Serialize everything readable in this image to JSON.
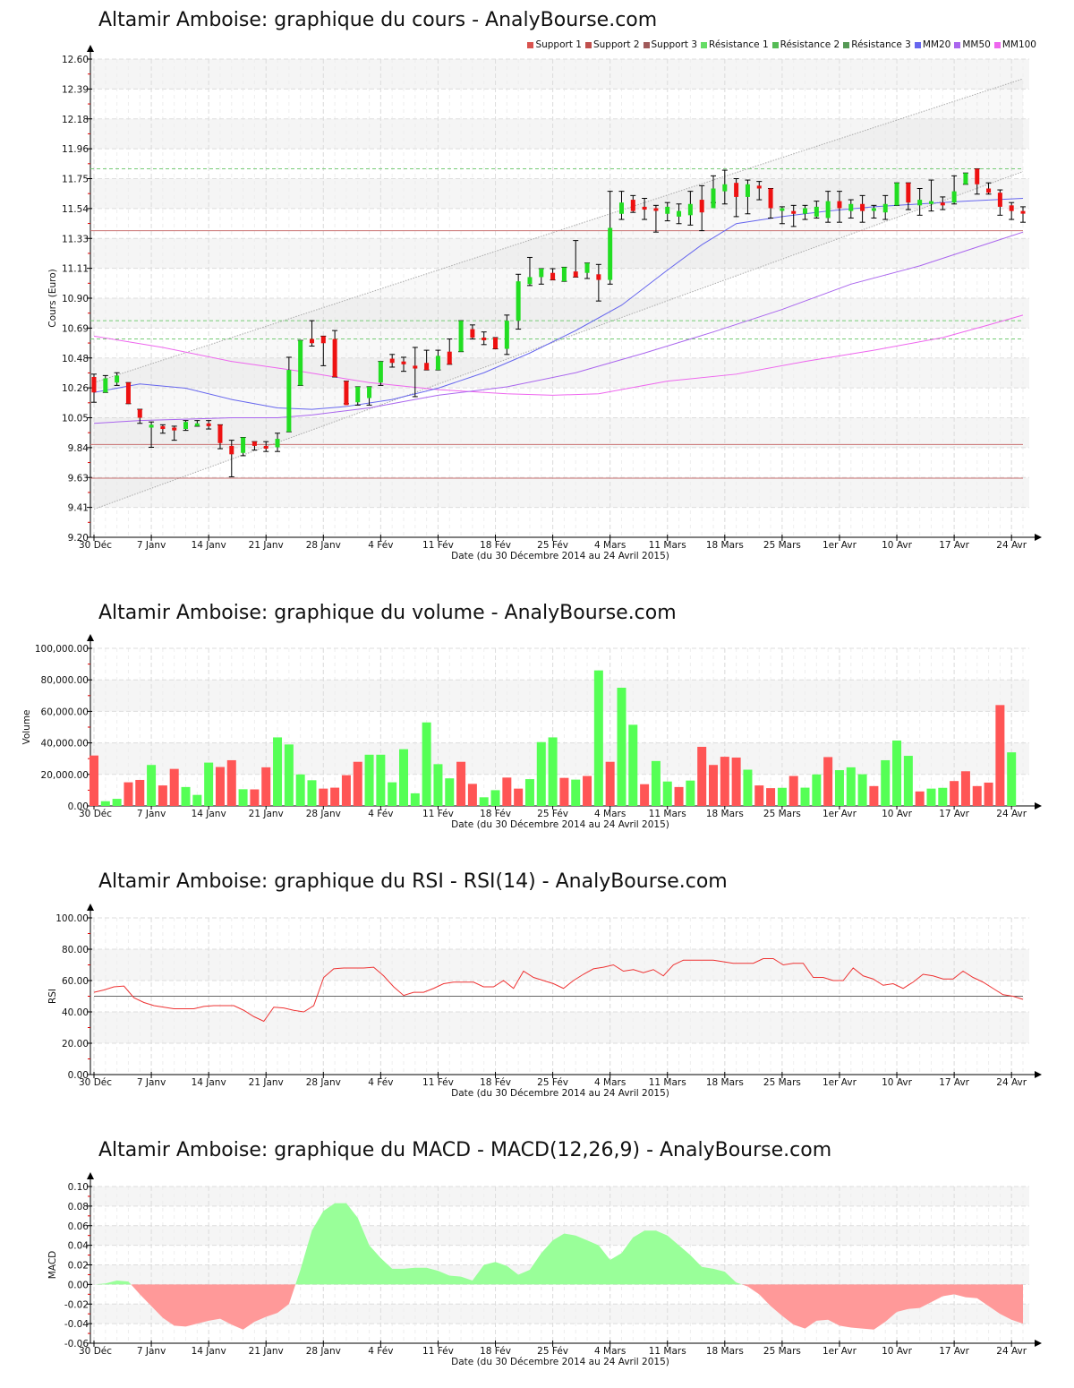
{
  "page": {
    "site": "AnalyBourse.com"
  },
  "chart_data": [
    {
      "id": "price",
      "type": "candlestick",
      "title": "Altamir Amboise: graphique du cours - AnalyBourse.com",
      "xlabel": "Date (du 30 Décembre 2014 au 24 Avril 2015)",
      "ylabel": "Cours (Euro)",
      "ylim": [
        9.2,
        12.6
      ],
      "yticks": [
        "9.20",
        "9.41",
        "9.63",
        "9.84",
        "10.05",
        "10.26",
        "10.48",
        "10.69",
        "10.90",
        "11.11",
        "11.33",
        "11.54",
        "11.75",
        "11.96",
        "12.18",
        "12.39",
        "12.60"
      ],
      "xticks": [
        "30 Déc",
        "7 Janv",
        "14 Janv",
        "21 Janv",
        "28 Janv",
        "4 Fév",
        "11 Fév",
        "18 Fév",
        "25 Fév",
        "4 Mars",
        "11 Mars",
        "18 Mars",
        "25 Mars",
        "1er Avr",
        "10 Avr",
        "17 Avr",
        "24 Avr"
      ],
      "grid": true,
      "legend_position": "top-right",
      "legend": [
        {
          "label": "Support 1",
          "color": "#d9534f"
        },
        {
          "label": "Support 2",
          "color": "#c0504d"
        },
        {
          "label": "Support 3",
          "color": "#a05a5a"
        },
        {
          "label": "Résistance 1",
          "color": "#66dd66"
        },
        {
          "label": "Résistance 2",
          "color": "#55bb55"
        },
        {
          "label": "Résistance 3",
          "color": "#559955"
        },
        {
          "label": "MM20",
          "color": "#6666ee"
        },
        {
          "label": "MM50",
          "color": "#aa66ee"
        },
        {
          "label": "MM100",
          "color": "#ee66ee"
        }
      ],
      "supports": [
        11.38,
        9.86,
        9.62
      ],
      "resistances": [
        11.82,
        10.74,
        10.61
      ],
      "candles": [
        [
          10.34,
          10.23,
          10.36,
          10.16
        ],
        [
          10.23,
          10.33,
          10.35,
          10.23
        ],
        [
          10.3,
          10.35,
          10.37,
          10.28
        ],
        [
          10.3,
          10.15,
          10.3,
          10.15
        ],
        [
          10.11,
          10.05,
          10.11,
          10.01
        ],
        [
          9.98,
          10.0,
          10.02,
          9.84
        ],
        [
          9.99,
          9.97,
          10.0,
          9.94
        ],
        [
          9.98,
          9.96,
          9.99,
          9.89
        ],
        [
          9.97,
          10.02,
          10.03,
          9.96
        ],
        [
          10.0,
          10.01,
          10.03,
          9.99
        ],
        [
          10.01,
          9.99,
          10.03,
          9.97
        ],
        [
          10.0,
          9.87,
          10.0,
          9.83
        ],
        [
          9.85,
          9.79,
          9.89,
          9.63
        ],
        [
          9.8,
          9.91,
          9.91,
          9.78
        ],
        [
          9.88,
          9.85,
          9.88,
          9.82
        ],
        [
          9.85,
          9.83,
          9.88,
          9.81
        ],
        [
          9.84,
          9.9,
          9.94,
          9.81
        ],
        [
          9.95,
          10.39,
          10.48,
          9.95
        ],
        [
          10.28,
          10.6,
          10.6,
          10.28
        ],
        [
          10.61,
          10.58,
          10.74,
          10.56
        ],
        [
          10.63,
          10.58,
          10.63,
          10.42
        ],
        [
          10.61,
          10.34,
          10.67,
          10.34
        ],
        [
          10.31,
          10.14,
          10.31,
          10.15
        ],
        [
          10.16,
          10.27,
          10.27,
          10.14
        ],
        [
          10.19,
          10.27,
          10.27,
          10.14
        ],
        [
          10.3,
          10.45,
          10.45,
          10.28
        ],
        [
          10.47,
          10.44,
          10.5,
          10.41
        ],
        [
          10.45,
          10.43,
          10.48,
          10.38
        ],
        [
          10.42,
          10.4,
          10.55,
          10.2
        ],
        [
          10.44,
          10.39,
          10.53,
          10.39
        ],
        [
          10.39,
          10.49,
          10.53,
          10.39
        ],
        [
          10.52,
          10.43,
          10.61,
          10.43
        ],
        [
          10.52,
          10.74,
          10.74,
          10.52
        ],
        [
          10.68,
          10.62,
          10.71,
          10.61
        ],
        [
          10.62,
          10.61,
          10.66,
          10.57
        ],
        [
          10.62,
          10.54,
          10.62,
          10.54
        ],
        [
          10.54,
          10.74,
          10.78,
          10.5
        ],
        [
          10.74,
          11.02,
          11.07,
          10.68
        ],
        [
          11.0,
          11.05,
          11.19,
          10.99
        ],
        [
          11.05,
          11.11,
          11.11,
          11.0
        ],
        [
          11.08,
          11.03,
          11.11,
          11.03
        ],
        [
          11.02,
          11.12,
          11.12,
          11.02
        ],
        [
          11.09,
          11.05,
          11.31,
          11.05
        ],
        [
          11.08,
          11.15,
          11.15,
          11.04
        ],
        [
          11.07,
          11.03,
          11.14,
          10.88
        ],
        [
          11.03,
          11.4,
          11.66,
          11.0
        ],
        [
          11.5,
          11.58,
          11.66,
          11.46
        ],
        [
          11.6,
          11.52,
          11.63,
          11.51
        ],
        [
          11.55,
          11.53,
          11.61,
          11.46
        ],
        [
          11.54,
          11.53,
          11.56,
          11.37
        ],
        [
          11.5,
          11.55,
          11.58,
          11.45
        ],
        [
          11.48,
          11.52,
          11.57,
          11.43
        ],
        [
          11.49,
          11.57,
          11.66,
          11.42
        ],
        [
          11.6,
          11.51,
          11.7,
          11.38
        ],
        [
          11.54,
          11.68,
          11.77,
          11.58
        ],
        [
          11.66,
          11.71,
          11.81,
          11.57
        ],
        [
          11.72,
          11.62,
          11.75,
          11.48
        ],
        [
          11.62,
          11.71,
          11.74,
          11.5
        ],
        [
          11.7,
          11.68,
          11.73,
          11.6
        ],
        [
          11.68,
          11.54,
          11.68,
          11.47
        ],
        [
          11.54,
          11.54,
          11.55,
          11.43
        ],
        [
          11.52,
          11.5,
          11.56,
          11.41
        ],
        [
          11.5,
          11.54,
          11.56,
          11.46
        ],
        [
          11.48,
          11.55,
          11.59,
          11.47
        ],
        [
          11.47,
          11.59,
          11.66,
          11.44
        ],
        [
          11.59,
          11.54,
          11.66,
          11.44
        ],
        [
          11.52,
          11.57,
          11.6,
          11.47
        ],
        [
          11.57,
          11.52,
          11.63,
          11.44
        ],
        [
          11.54,
          11.54,
          11.56,
          11.47
        ],
        [
          11.51,
          11.57,
          11.63,
          11.46
        ],
        [
          11.56,
          11.72,
          11.72,
          11.56
        ],
        [
          11.72,
          11.58,
          11.72,
          11.53
        ],
        [
          11.56,
          11.6,
          11.68,
          11.49
        ],
        [
          11.57,
          11.59,
          11.74,
          11.52
        ],
        [
          11.58,
          11.56,
          11.62,
          11.53
        ],
        [
          11.58,
          11.66,
          11.77,
          11.57
        ],
        [
          11.71,
          11.79,
          11.79,
          11.71
        ],
        [
          11.82,
          11.71,
          11.82,
          11.64
        ],
        [
          11.68,
          11.65,
          11.72,
          11.64
        ],
        [
          11.65,
          11.55,
          11.67,
          11.49
        ],
        [
          11.56,
          11.52,
          11.58,
          11.46
        ],
        [
          11.52,
          11.51,
          11.55,
          11.44
        ]
      ],
      "mm20": [
        [
          0,
          10.23
        ],
        [
          4,
          10.29
        ],
        [
          8,
          10.26
        ],
        [
          12,
          10.18
        ],
        [
          16,
          10.12
        ],
        [
          19,
          10.11
        ],
        [
          22,
          10.13
        ],
        [
          26,
          10.18
        ],
        [
          30,
          10.26
        ],
        [
          34,
          10.37
        ],
        [
          38,
          10.51
        ],
        [
          42,
          10.67
        ],
        [
          46,
          10.85
        ],
        [
          50,
          11.1
        ],
        [
          53,
          11.28
        ],
        [
          56,
          11.43
        ],
        [
          60,
          11.48
        ],
        [
          64,
          11.52
        ],
        [
          68,
          11.55
        ],
        [
          72,
          11.57
        ],
        [
          76,
          11.59
        ],
        [
          81,
          11.61
        ]
      ],
      "mm50": [
        [
          0,
          10.01
        ],
        [
          4,
          10.03
        ],
        [
          8,
          10.04
        ],
        [
          12,
          10.05
        ],
        [
          16,
          10.05
        ],
        [
          19,
          10.07
        ],
        [
          24,
          10.12
        ],
        [
          30,
          10.21
        ],
        [
          36,
          10.27
        ],
        [
          42,
          10.37
        ],
        [
          48,
          10.51
        ],
        [
          54,
          10.66
        ],
        [
          60,
          10.82
        ],
        [
          66,
          11.0
        ],
        [
          72,
          11.13
        ],
        [
          78,
          11.29
        ],
        [
          81,
          11.37
        ]
      ],
      "mm100": [
        [
          0,
          10.63
        ],
        [
          6,
          10.55
        ],
        [
          12,
          10.45
        ],
        [
          18,
          10.38
        ],
        [
          24,
          10.3
        ],
        [
          30,
          10.25
        ],
        [
          36,
          10.22
        ],
        [
          40,
          10.21
        ],
        [
          44,
          10.22
        ],
        [
          50,
          10.31
        ],
        [
          56,
          10.36
        ],
        [
          62,
          10.45
        ],
        [
          68,
          10.53
        ],
        [
          74,
          10.62
        ],
        [
          78,
          10.71
        ],
        [
          81,
          10.78
        ]
      ],
      "channel_upper": [
        [
          0,
          10.3
        ],
        [
          81,
          12.46
        ]
      ],
      "channel_lower": [
        [
          0,
          9.4
        ],
        [
          81,
          11.8
        ]
      ]
    },
    {
      "id": "volume",
      "type": "bar",
      "title": "Altamir Amboise: graphique du volume - AnalyBourse.com",
      "xlabel": "Date (du 30 Décembre 2014 au 24 Avril 2015)",
      "ylabel": "Volume",
      "ylim": [
        0,
        100000
      ],
      "yticks": [
        "0.00",
        "20,000.00",
        "40,000.00",
        "60,000.00",
        "80,000.00",
        "100,000.00"
      ],
      "xticks": [
        "30 Déc",
        "7 Janv",
        "14 Janv",
        "21 Janv",
        "28 Janv",
        "4 Fév",
        "11 Fév",
        "18 Fév",
        "25 Fév",
        "4 Mars",
        "11 Mars",
        "18 Mars",
        "25 Mars",
        "1er Avr",
        "10 Avr",
        "17 Avr",
        "24 Avr"
      ],
      "colors": {
        "up": "#55ff55",
        "down": "#ff5555"
      },
      "values": [
        32000,
        3000,
        4500,
        15000,
        16500,
        26000,
        13000,
        23500,
        12000,
        7000,
        27500,
        24700,
        29000,
        10600,
        10500,
        24500,
        43500,
        39000,
        20000,
        16300,
        11000,
        11600,
        19500,
        28000,
        32500,
        32500,
        15000,
        36000,
        8000,
        53000,
        26500,
        17500,
        28000,
        14000,
        5500,
        10000,
        18000,
        11000,
        17000,
        40500,
        43500,
        17800,
        16700,
        19000,
        86000,
        28000,
        75000,
        51500,
        13800,
        28500,
        15500,
        12000,
        16100,
        37500,
        26000,
        31200,
        30700,
        23000,
        13000,
        11300,
        11500,
        19000,
        11600,
        20000,
        31000,
        22700,
        24500,
        20100,
        12600,
        29000,
        41500,
        31800,
        9200,
        11000,
        11500,
        15800,
        22000,
        12600,
        14800,
        64000,
        34000,
        0
      ],
      "directions": [
        "down",
        "up",
        "up",
        "down",
        "down",
        "up",
        "down",
        "down",
        "up",
        "up",
        "up",
        "down",
        "down",
        "up",
        "down",
        "down",
        "up",
        "up",
        "up",
        "up",
        "down",
        "down",
        "down",
        "down",
        "up",
        "up",
        "up",
        "up",
        "up",
        "up",
        "up",
        "up",
        "down",
        "down",
        "up",
        "up",
        "down",
        "down",
        "up",
        "up",
        "up",
        "down",
        "up",
        "down",
        "up",
        "down",
        "up",
        "up",
        "down",
        "up",
        "up",
        "down",
        "up",
        "down",
        "down",
        "down",
        "down",
        "up",
        "down",
        "down",
        "up",
        "down",
        "up",
        "up",
        "down",
        "up",
        "up",
        "up",
        "down",
        "up",
        "up",
        "up",
        "down",
        "up",
        "up",
        "down",
        "down",
        "down",
        "down",
        "down",
        "up",
        "up"
      ]
    },
    {
      "id": "rsi",
      "type": "line",
      "title": "Altamir Amboise: graphique du RSI - RSI(14) - AnalyBourse.com",
      "xlabel": "Date (du 30 Décembre 2014 au 24 Avril 2015)",
      "ylabel": "RSI",
      "ylim": [
        0,
        100
      ],
      "yticks": [
        "0.00",
        "20.00",
        "40.00",
        "60.00",
        "80.00",
        "100.00"
      ],
      "xticks": [
        "30 Déc",
        "7 Janv",
        "14 Janv",
        "21 Janv",
        "28 Janv",
        "4 Fév",
        "11 Fév",
        "18 Fév",
        "25 Fév",
        "4 Mars",
        "11 Mars",
        "18 Mars",
        "25 Mars",
        "1er Avr",
        "10 Avr",
        "17 Avr",
        "24 Avr"
      ],
      "reference_line": 50,
      "values": [
        52.5,
        54,
        56,
        56.5,
        49,
        46,
        44,
        43,
        42,
        42,
        42,
        43.5,
        44,
        44,
        44,
        41,
        37,
        34,
        43,
        42.5,
        41,
        40,
        44,
        62,
        67.5,
        68,
        68,
        68,
        68.5,
        63,
        56,
        50.5,
        52.5,
        52.5,
        55,
        58,
        59,
        59,
        59,
        56,
        56,
        60,
        55,
        66,
        62,
        60,
        58,
        55,
        60,
        64,
        67.5,
        68.5,
        70,
        66,
        67,
        65,
        67,
        63,
        70,
        73,
        73,
        73,
        73,
        72,
        71,
        71,
        71,
        74,
        74,
        70,
        71,
        71,
        62,
        62,
        60,
        60,
        68,
        63,
        61,
        57,
        58,
        55,
        59,
        64,
        63,
        61,
        61,
        66,
        62,
        59,
        55,
        51,
        50,
        48
      ],
      "color": "#ee3333"
    },
    {
      "id": "macd",
      "type": "area",
      "title": "Altamir Amboise: graphique du MACD - MACD(12,26,9) - AnalyBourse.com",
      "xlabel": "Date (du 30 Décembre 2014 au 24 Avril 2015)",
      "ylabel": "MACD",
      "ylim": [
        -0.06,
        0.1
      ],
      "yticks": [
        "-0.06",
        "-0.04",
        "-0.02",
        "0.00",
        "0.02",
        "0.04",
        "0.06",
        "0.08",
        "0.10"
      ],
      "xticks": [
        "30 Déc",
        "7 Janv",
        "14 Janv",
        "21 Janv",
        "28 Janv",
        "4 Fév",
        "11 Fév",
        "18 Fév",
        "25 Fév",
        "4 Mars",
        "11 Mars",
        "18 Mars",
        "25 Mars",
        "1er Avr",
        "10 Avr",
        "17 Avr",
        "24 Avr"
      ],
      "colors": {
        "positive": "#99ff99",
        "negative": "#ff9999"
      },
      "values": [
        0,
        0.001,
        0.004,
        0.003,
        -0.01,
        -0.022,
        -0.034,
        -0.042,
        -0.043,
        -0.04,
        -0.037,
        -0.035,
        -0.041,
        -0.046,
        -0.038,
        -0.033,
        -0.029,
        -0.02,
        0.015,
        0.055,
        0.075,
        0.083,
        0.083,
        0.068,
        0.04,
        0.027,
        0.016,
        0.016,
        0.017,
        0.017,
        0.014,
        0.009,
        0.008,
        0.004,
        0.02,
        0.023,
        0.019,
        0.01,
        0.015,
        0.032,
        0.045,
        0.052,
        0.05,
        0.045,
        0.04,
        0.025,
        0.032,
        0.048,
        0.055,
        0.055,
        0.05,
        0.04,
        0.03,
        0.018,
        0.016,
        0.013,
        0.002,
        -0.002,
        -0.01,
        -0.022,
        -0.032,
        -0.041,
        -0.045,
        -0.037,
        -0.036,
        -0.042,
        -0.044,
        -0.045,
        -0.046,
        -0.038,
        -0.028,
        -0.025,
        -0.024,
        -0.018,
        -0.012,
        -0.01,
        -0.013,
        -0.014,
        -0.022,
        -0.03,
        -0.036,
        -0.04
      ]
    }
  ]
}
